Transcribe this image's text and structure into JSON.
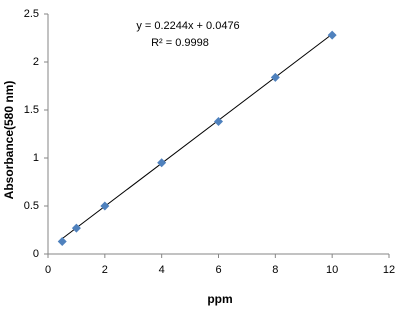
{
  "chart_data": {
    "type": "scatter",
    "x_label": "ppm",
    "y_label": "Absorbance(580  nm)",
    "annotations": [
      "y = 0.2244x + 0.0476",
      "R² = 0.9998"
    ],
    "x": [
      0.5,
      1,
      2,
      4,
      6,
      8,
      10
    ],
    "values": [
      0.13,
      0.27,
      0.5,
      0.95,
      1.38,
      1.84,
      2.28
    ],
    "color": "#4f81bd",
    "trendline": {
      "x": [
        0.5,
        10
      ],
      "values": [
        0.16,
        2.29
      ],
      "color": "#000000"
    },
    "xlim": [
      0,
      12
    ],
    "xticks": [
      0,
      2,
      4,
      6,
      8,
      10,
      12
    ],
    "ylim": [
      0,
      2.5
    ],
    "yticks": [
      0,
      0.5,
      1,
      1.5,
      2,
      2.5
    ],
    "grid": false
  }
}
